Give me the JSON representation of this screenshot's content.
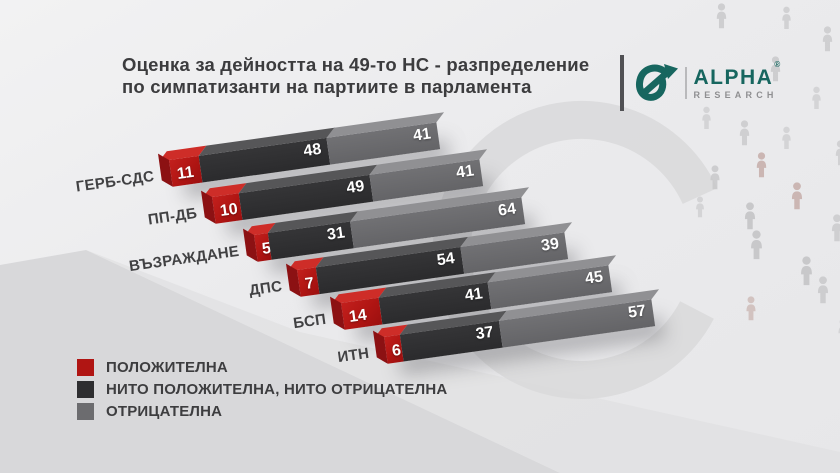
{
  "title": {
    "line1": "Оценка за дейността на 49-то НС - разпределение",
    "line2": "по симпатизанти на партиите в парламента"
  },
  "logo": {
    "brand": "ALPHA",
    "registered": "®",
    "subtitle": "RESEARCH",
    "brand_color": "#17665f"
  },
  "legend": {
    "items": [
      {
        "label": "ПОЛОЖИТЕЛНА",
        "color": "#b01513"
      },
      {
        "label": "НИТО ПОЛОЖИТЕЛНА, НИТО ОТРИЦАТЕЛНА",
        "color": "#2e2e30"
      },
      {
        "label": "ОТРИЦАТЕЛНА",
        "color": "#6c6c6f"
      }
    ]
  },
  "chart_data": {
    "type": "bar",
    "variant": "stacked-3d-diagonal",
    "unit": "percent",
    "row_total": 100,
    "categories": [
      "ГЕРБ-СДС",
      "ПП-ДБ",
      "ВЪЗРАЖДАНЕ",
      "ДПС",
      "БСП",
      "ИТН"
    ],
    "series": [
      {
        "name": "ПОЛОЖИТЕЛНА",
        "color": "#b01513",
        "values": [
          11,
          10,
          5,
          7,
          14,
          6
        ]
      },
      {
        "name": "НИТО ПОЛОЖИТЕЛНА, НИТО ОТРИЦАТЕЛНА",
        "color": "#2e2e30",
        "values": [
          48,
          49,
          31,
          54,
          41,
          37
        ]
      },
      {
        "name": "ОТРИЦАТЕЛНА",
        "color": "#6c6c6f",
        "values": [
          41,
          41,
          64,
          39,
          45,
          57
        ]
      }
    ],
    "legend_position": "bottom-left",
    "grid": false,
    "axes_visible": false
  }
}
